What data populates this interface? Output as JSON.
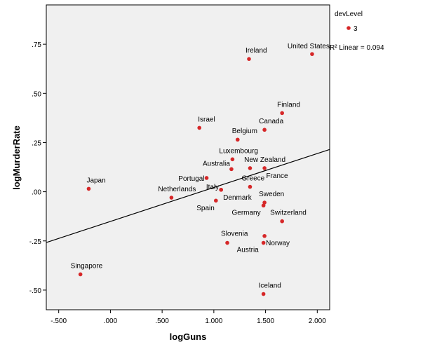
{
  "chart_data": {
    "type": "scatter",
    "xlabel": "logGuns",
    "ylabel": "logMurderRate",
    "xlim": [
      -0.62,
      2.12
    ],
    "ylim": [
      -0.6,
      0.95
    ],
    "xticks": [
      {
        "v": -0.5,
        "t": "-.500"
      },
      {
        "v": 0.0,
        "t": ".000"
      },
      {
        "v": 0.5,
        "t": ".500"
      },
      {
        "v": 1.0,
        "t": "1.000"
      },
      {
        "v": 1.5,
        "t": "1.500"
      },
      {
        "v": 2.0,
        "t": "2.000"
      }
    ],
    "yticks": [
      {
        "v": 0.75,
        "t": ".75"
      },
      {
        "v": 0.5,
        "t": ".50"
      },
      {
        "v": 0.25,
        "t": ".25"
      },
      {
        "v": 0.0,
        "t": ".00"
      },
      {
        "v": -0.25,
        "t": "-.25"
      },
      {
        "v": -0.5,
        "t": "-.50"
      }
    ],
    "grid": false,
    "legend": {
      "title": "devLevel",
      "items": [
        "3"
      ],
      "placement": "top-right"
    },
    "fit_line": {
      "label": "R² Linear = 0.094",
      "x": [
        -0.62,
        2.12
      ],
      "y": [
        -0.258,
        0.215
      ]
    },
    "colors": {
      "point": "#d62728",
      "background": "#f0f0f0",
      "line": "#000000"
    },
    "points": [
      {
        "name": "Ireland",
        "x": 1.34,
        "y": 0.675,
        "anchor": "start",
        "dx": -5,
        "dy": -9
      },
      {
        "name": "United States",
        "x": 1.95,
        "y": 0.7,
        "anchor": "end",
        "dx": 25,
        "dy": -8
      },
      {
        "name": "Finland",
        "x": 1.66,
        "y": 0.4,
        "anchor": "start",
        "dx": -7,
        "dy": -9
      },
      {
        "name": "Canada",
        "x": 1.49,
        "y": 0.315,
        "anchor": "start",
        "dx": -8,
        "dy": -9
      },
      {
        "name": "Israel",
        "x": 0.86,
        "y": 0.325,
        "anchor": "start",
        "dx": -2,
        "dy": -9
      },
      {
        "name": "Belgium",
        "x": 1.23,
        "y": 0.265,
        "anchor": "start",
        "dx": -8,
        "dy": -9
      },
      {
        "name": "Luxembourg",
        "x": 1.18,
        "y": 0.165,
        "anchor": "start",
        "dx": -19,
        "dy": -9
      },
      {
        "name": "New Zealand",
        "x": 1.49,
        "y": 0.12,
        "anchor": "start",
        "dx": -29,
        "dy": -9
      },
      {
        "name": "Australia",
        "x": 1.17,
        "y": 0.115,
        "anchor": "end",
        "dx": -2,
        "dy": -5
      },
      {
        "name": "France",
        "x": 1.35,
        "y": 0.12,
        "anchor": "start",
        "dx": 23,
        "dy": 14
      },
      {
        "name": "Japan",
        "x": -0.21,
        "y": 0.015,
        "anchor": "start",
        "dx": -3,
        "dy": -9
      },
      {
        "name": "Portugal",
        "x": 0.93,
        "y": 0.07,
        "anchor": "end",
        "dx": -3,
        "dy": 4
      },
      {
        "name": "Greece",
        "x": 1.35,
        "y": 0.025,
        "anchor": "start",
        "dx": -12,
        "dy": -9
      },
      {
        "name": "Netherlands",
        "x": 0.59,
        "y": -0.03,
        "anchor": "start",
        "dx": -19,
        "dy": -9
      },
      {
        "name": "Italy",
        "x": 1.07,
        "y": 0.01,
        "anchor": "end",
        "dx": -3,
        "dy": -1
      },
      {
        "name": "Denmark",
        "x": 1.07,
        "y": 0.01,
        "anchor": "start",
        "dx": 3,
        "dy": 14
      },
      {
        "name": "Spain",
        "x": 1.02,
        "y": -0.045,
        "anchor": "end",
        "dx": -2,
        "dy": 14
      },
      {
        "name": "Sweden",
        "x": 1.49,
        "y": -0.055,
        "anchor": "start",
        "dx": -8,
        "dy": -9
      },
      {
        "name": "Germany",
        "x": 1.48,
        "y": -0.07,
        "anchor": "end",
        "dx": -4,
        "dy": 13
      },
      {
        "name": "Switzerland",
        "x": 1.66,
        "y": -0.15,
        "anchor": "start",
        "dx": -17,
        "dy": -9
      },
      {
        "name": "Slovenia",
        "x": 1.13,
        "y": -0.26,
        "anchor": "start",
        "dx": -9,
        "dy": -10
      },
      {
        "name": "Norway",
        "x": 1.49,
        "y": -0.225,
        "anchor": "start",
        "dx": 2,
        "dy": 13
      },
      {
        "name": "Austria",
        "x": 1.48,
        "y": -0.26,
        "anchor": "start",
        "dx": -38,
        "dy": 13
      },
      {
        "name": "Singapore",
        "x": -0.29,
        "y": -0.42,
        "anchor": "start",
        "dx": -14,
        "dy": -9
      },
      {
        "name": "Iceland",
        "x": 1.48,
        "y": -0.52,
        "anchor": "start",
        "dx": -7,
        "dy": -9
      }
    ]
  }
}
